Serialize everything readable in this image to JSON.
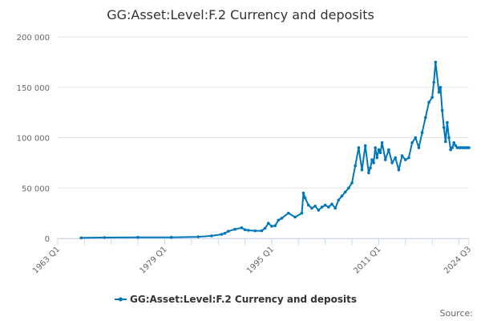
{
  "chart_data": {
    "type": "line",
    "title": "GG:Asset:Level:F.2 Currency and deposits",
    "xlabel": "",
    "ylabel": "",
    "xlim": [
      1963.0,
      2024.5
    ],
    "ylim": [
      0,
      200000
    ],
    "grid": true,
    "legend_position": "bottom-center",
    "x_tick_labels": [
      "1963 Q1",
      "1979 Q1",
      "1995 Q1",
      "2011 Q1",
      "2024 Q3"
    ],
    "x_ticks": [
      1963.0,
      1979.0,
      1995.0,
      2011.0,
      2024.5
    ],
    "y_tick_labels": [
      "0",
      "50 000",
      "100 000",
      "150 000",
      "200 000"
    ],
    "y_ticks": [
      0,
      50000,
      100000,
      150000,
      200000
    ],
    "series": [
      {
        "name": "GG:Asset:Level:F.2 Currency and deposits",
        "color": "#0077bb",
        "x": [
          1966.5,
          1970.0,
          1975.0,
          1980.0,
          1984.0,
          1986.0,
          1987.5,
          1988.0,
          1988.5,
          1989.5,
          1990.5,
          1991.0,
          1991.5,
          1992.5,
          1993.5,
          1994.0,
          1994.5,
          1995.0,
          1995.5,
          1996.0,
          1996.5,
          1997.5,
          1998.5,
          1999.5,
          1999.75,
          2000.0,
          2000.5,
          2001.0,
          2001.5,
          2002.0,
          2002.5,
          2003.0,
          2003.5,
          2004.0,
          2004.5,
          2005.0,
          2005.5,
          2006.0,
          2006.5,
          2007.0,
          2007.5,
          2008.0,
          2008.5,
          2009.0,
          2009.5,
          2009.75,
          2010.0,
          2010.25,
          2010.5,
          2010.75,
          2011.0,
          2011.25,
          2011.5,
          2012.0,
          2012.5,
          2013.0,
          2013.5,
          2014.0,
          2014.5,
          2015.0,
          2015.5,
          2016.0,
          2016.5,
          2017.0,
          2017.5,
          2018.0,
          2018.5,
          2019.0,
          2019.25,
          2019.5,
          2020.0,
          2020.25,
          2020.5,
          2020.75,
          2021.0,
          2021.25,
          2021.5,
          2021.75,
          2022.0,
          2022.25,
          2022.5,
          2022.75,
          2023.0,
          2023.25,
          2023.5,
          2023.75,
          2024.0,
          2024.25,
          2024.5
        ],
        "values": [
          500,
          800,
          1000,
          1000,
          1500,
          2500,
          4000,
          5000,
          7000,
          9000,
          10500,
          8500,
          8000,
          7500,
          7500,
          10000,
          15000,
          12000,
          12500,
          18000,
          20000,
          25000,
          21000,
          25000,
          45000,
          40000,
          33000,
          30000,
          32000,
          28000,
          31000,
          33000,
          31000,
          34000,
          30000,
          38000,
          42000,
          46000,
          50000,
          55000,
          72000,
          90000,
          68000,
          92000,
          65000,
          70000,
          78000,
          75000,
          90000,
          80000,
          88000,
          85000,
          95000,
          78000,
          88000,
          75000,
          80000,
          68000,
          82000,
          78000,
          80000,
          95000,
          100000,
          90000,
          105000,
          120000,
          135000,
          140000,
          155000,
          175000,
          145000,
          150000,
          127000,
          110000,
          96000,
          115000,
          100000,
          88000,
          90000,
          95000,
          92000,
          90000,
          90000,
          90000,
          90000,
          90000,
          90000,
          90000,
          90000
        ]
      }
    ],
    "source_label": "Source:"
  }
}
